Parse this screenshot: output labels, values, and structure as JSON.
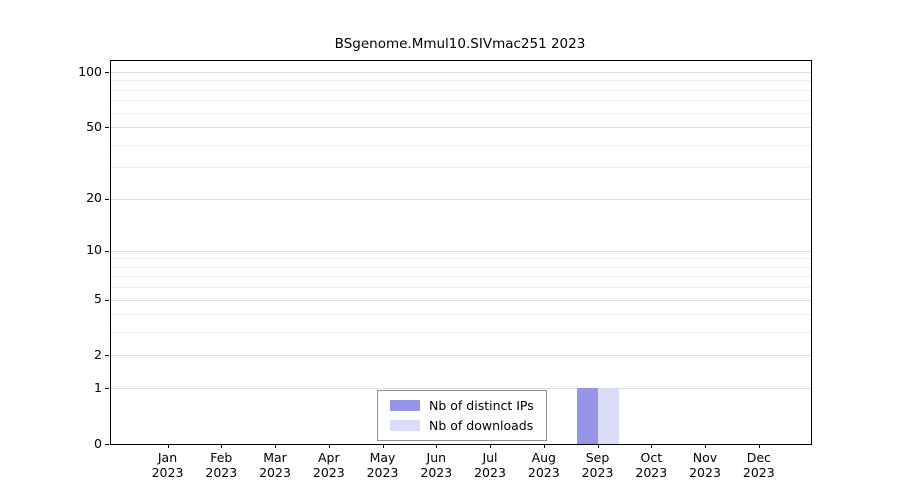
{
  "title": "BSgenome.Mmul10.SIVmac251 2023",
  "chart_data": {
    "type": "bar",
    "title": "BSgenome.Mmul10.SIVmac251 2023",
    "categories": [
      "Jan 2023",
      "Feb 2023",
      "Mar 2023",
      "Apr 2023",
      "May 2023",
      "Jun 2023",
      "Jul 2023",
      "Aug 2023",
      "Sep 2023",
      "Oct 2023",
      "Nov 2023",
      "Dec 2023"
    ],
    "series": [
      {
        "name": "Nb of distinct IPs",
        "color": "#9795e8",
        "values": [
          0,
          0,
          0,
          0,
          0,
          0,
          0,
          0,
          1,
          0,
          0,
          0
        ]
      },
      {
        "name": "Nb of downloads",
        "color": "#dadcf8",
        "values": [
          0,
          0,
          0,
          0,
          0,
          0,
          0,
          0,
          1,
          0,
          0,
          0
        ]
      }
    ],
    "ylim": [
      0,
      100
    ],
    "yscale": "log1p",
    "yticks": [
      0,
      1,
      2,
      5,
      10,
      20,
      50,
      100
    ],
    "minor_gridlines": [
      1,
      2,
      3,
      4,
      5,
      6,
      7,
      8,
      9,
      10,
      20,
      30,
      40,
      50,
      60,
      70,
      80,
      90,
      100
    ],
    "grid": true,
    "legend_position": "bottom-center-inside"
  },
  "colors": {
    "background": "#ffffff",
    "axis": "#000000",
    "gridline_minor": "#ececec",
    "gridline_major": "#dedede",
    "distinct_ips_bar": "#9795e8",
    "downloads_bar": "#dadcf8"
  }
}
